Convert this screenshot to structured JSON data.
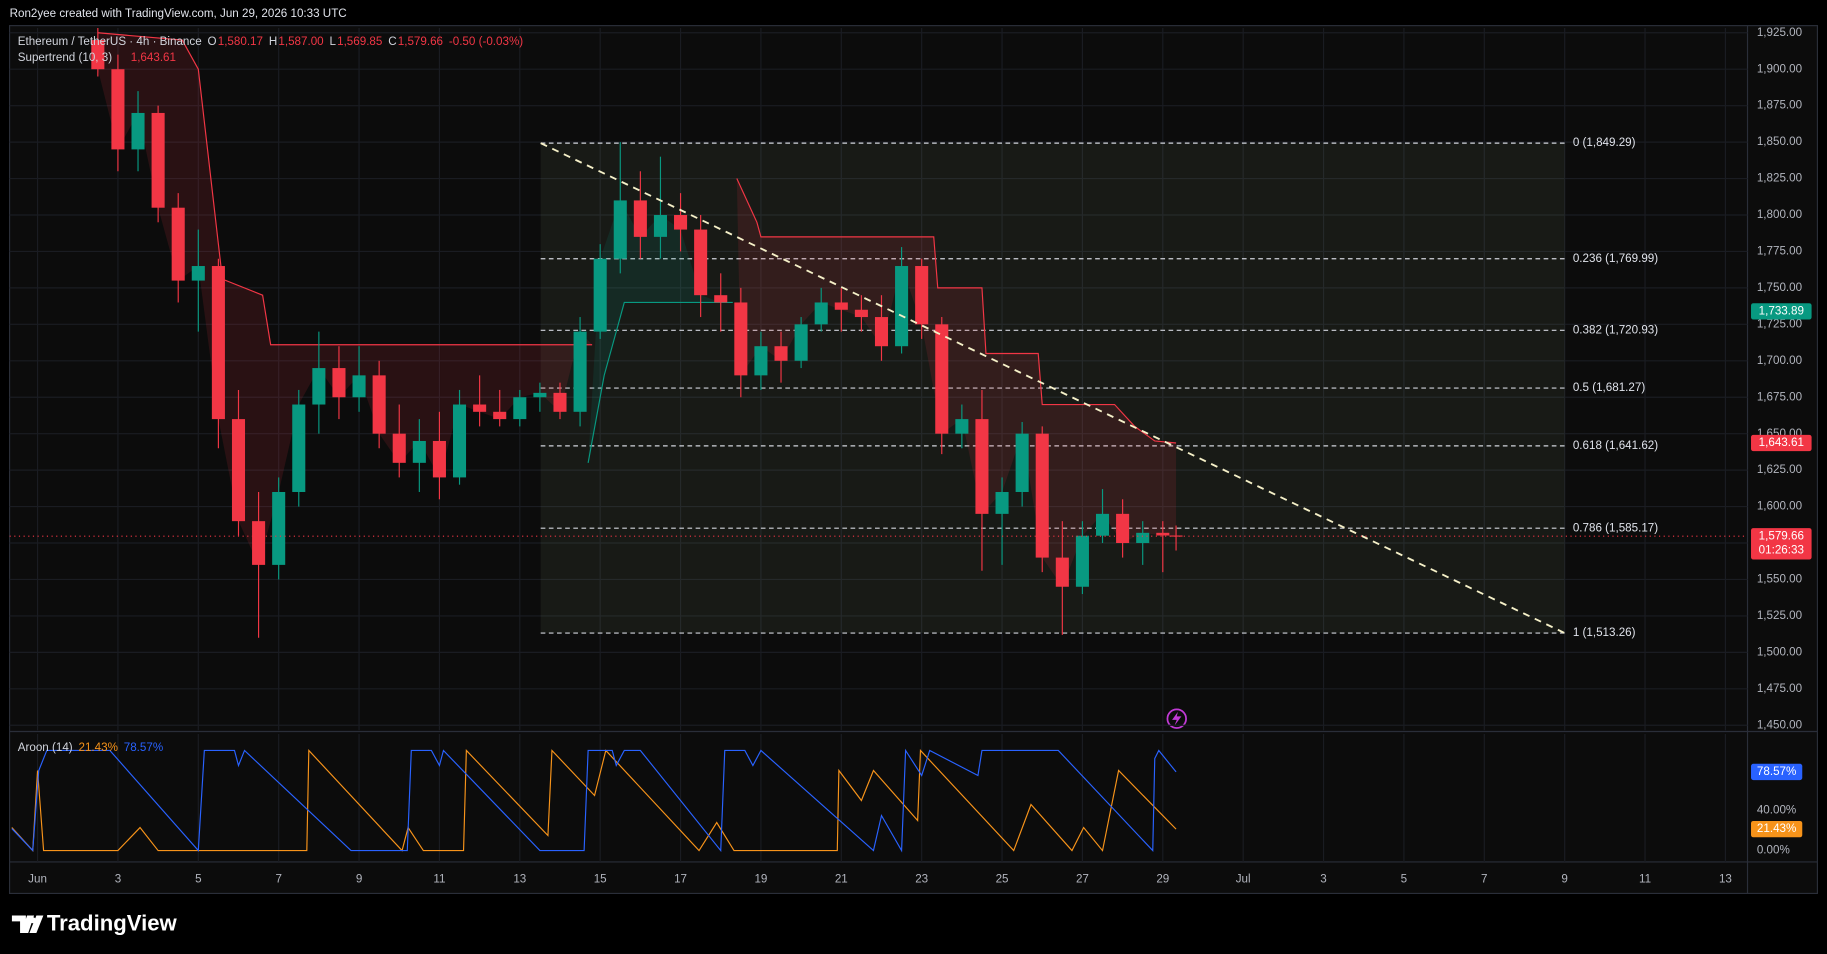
{
  "chart_data": {
    "type": "candlestick",
    "attribution": "Ron2yee created with TradingView.com, Jun 29, 2026 10:33 UTC",
    "symbol": "Ethereum / TetherUS · 4h · Binance",
    "ohlc_header": [
      {
        "key": "O",
        "value": "1,580.17"
      },
      {
        "key": "H",
        "value": "1,587.00"
      },
      {
        "key": "L",
        "value": "1,569.85"
      },
      {
        "key": "C",
        "value": "1,579.66"
      }
    ],
    "change": "-0.50 (-0.03%)",
    "up_color": "#089981",
    "down_color": "#f23645",
    "xlim": [
      0.362,
      43.55
    ],
    "xticks": [
      {
        "value": 1,
        "label": "Jun"
      },
      3,
      5,
      7,
      9,
      11,
      13,
      15,
      17,
      19,
      21,
      23,
      25,
      27,
      29,
      {
        "value": 31,
        "label": "Jul"
      },
      {
        "value": 33,
        "label": "3"
      },
      {
        "value": 35,
        "label": "5"
      },
      {
        "value": 37,
        "label": "7"
      },
      {
        "value": 39,
        "label": "9"
      },
      {
        "value": 41,
        "label": "11"
      },
      {
        "value": 43,
        "label": "13"
      }
    ],
    "ylim": [
      1446.5,
      1928.3
    ],
    "yticks": [
      {
        "value": 1450,
        "label": "1,450.00"
      },
      {
        "value": 1475,
        "label": "1,475.00"
      },
      {
        "value": 1500,
        "label": "1,500.00"
      },
      {
        "value": 1525,
        "label": "1,525.00"
      },
      {
        "value": 1550,
        "label": "1,550.00"
      },
      {
        "value": 1575,
        "label": "1,575.00"
      },
      {
        "value": 1600,
        "label": "1,600.00"
      },
      {
        "value": 1625,
        "label": "1,625.00"
      },
      {
        "value": 1650,
        "label": "1,650.00"
      },
      {
        "value": 1675,
        "label": "1,675.00"
      },
      {
        "value": 1700,
        "label": "1,700.00"
      },
      {
        "value": 1725,
        "label": "1,725.00"
      },
      {
        "value": 1750,
        "label": "1,750.00"
      },
      {
        "value": 1775,
        "label": "1,775.00"
      },
      {
        "value": 1800,
        "label": "1,800.00"
      },
      {
        "value": 1825,
        "label": "1,825.00"
      },
      {
        "value": 1850,
        "label": "1,850.00"
      },
      {
        "value": 1875,
        "label": "1,875.00"
      },
      {
        "value": 1900,
        "label": "1,900.00"
      },
      {
        "value": 1925,
        "label": "1,925.00"
      }
    ],
    "candles": {
      "x": [
        2.5,
        3,
        3.5,
        4,
        4.5,
        5,
        5.5,
        6,
        6.5,
        7,
        7.5,
        8,
        8.5,
        9,
        9.5,
        10,
        10.5,
        11,
        11.5,
        12,
        12.5,
        13,
        13.5,
        14,
        14.5,
        15,
        15.5,
        16,
        16.5,
        17,
        17.5,
        18,
        18.5,
        19,
        19.5,
        20,
        20.5,
        21,
        21.5,
        22,
        22.5,
        23,
        23.5,
        24,
        24.5,
        25,
        25.5,
        26,
        26.5,
        27,
        27.5,
        28,
        28.5,
        29,
        29.33
      ],
      "open": [
        1920,
        1900,
        1845,
        1870,
        1805,
        1755,
        1765,
        1660,
        1590,
        1560,
        1610,
        1670,
        1695,
        1675,
        1690,
        1650,
        1630,
        1645,
        1620,
        1670,
        1665,
        1660,
        1675,
        1678,
        1665,
        1720,
        1770,
        1810,
        1785,
        1800,
        1790,
        1745,
        1740,
        1690,
        1710,
        1700,
        1725,
        1740,
        1735,
        1730,
        1710,
        1765,
        1725,
        1650,
        1660,
        1595,
        1610,
        1650,
        1565,
        1545,
        1580,
        1595,
        1575,
        1582,
        1580.17
      ],
      "high": [
        1935,
        1910,
        1885,
        1875,
        1815,
        1790,
        1770,
        1680,
        1610,
        1620,
        1680,
        1720,
        1710,
        1710,
        1700,
        1670,
        1660,
        1665,
        1680,
        1690,
        1680,
        1680,
        1685,
        1685,
        1730,
        1780,
        1850,
        1830,
        1840,
        1815,
        1800,
        1760,
        1750,
        1720,
        1720,
        1730,
        1750,
        1750,
        1745,
        1745,
        1778,
        1770,
        1730,
        1670,
        1680,
        1620,
        1658,
        1655,
        1590,
        1590,
        1612,
        1605,
        1590,
        1590,
        1587
      ],
      "low": [
        1895,
        1830,
        1830,
        1795,
        1740,
        1720,
        1640,
        1580,
        1510,
        1550,
        1600,
        1650,
        1660,
        1665,
        1640,
        1620,
        1610,
        1605,
        1615,
        1655,
        1655,
        1655,
        1665,
        1660,
        1655,
        1715,
        1760,
        1770,
        1770,
        1775,
        1730,
        1720,
        1675,
        1680,
        1685,
        1695,
        1720,
        1720,
        1720,
        1700,
        1705,
        1715,
        1636,
        1640,
        1556,
        1560,
        1600,
        1555,
        1512,
        1540,
        1575,
        1565,
        1560,
        1555,
        1569.85
      ],
      "close": [
        1900,
        1845,
        1870,
        1805,
        1755,
        1765,
        1660,
        1590,
        1560,
        1610,
        1670,
        1695,
        1675,
        1690,
        1650,
        1630,
        1645,
        1620,
        1670,
        1665,
        1660,
        1675,
        1678,
        1665,
        1720,
        1770,
        1810,
        1785,
        1800,
        1790,
        1745,
        1740,
        1690,
        1710,
        1700,
        1725,
        1740,
        1735,
        1730,
        1710,
        1765,
        1725,
        1650,
        1660,
        1595,
        1610,
        1650,
        1565,
        1545,
        1580,
        1595,
        1575,
        1582,
        1580.17,
        1579.66
      ]
    },
    "supertrend": {
      "label": "Supertrend (10, 3)",
      "value_label": "1,643.61",
      "lines": [
        {
          "color": "#f23645",
          "x": [
            2.5,
            4.6,
            5.0,
            5.5,
            5.6,
            6.6,
            6.8,
            14.8
          ],
          "values": [
            1925,
            1920,
            1900,
            1780,
            1756,
            1745,
            1711,
            1711
          ]
        },
        {
          "color": "#089981",
          "x": [
            14.7,
            14.9,
            15.1,
            15.4,
            15.6,
            18.3
          ],
          "values": [
            1630,
            1660,
            1690,
            1720,
            1740,
            1740
          ]
        },
        {
          "color": "#f23645",
          "x": [
            18.4,
            18.9,
            19.0,
            23.3,
            23.4,
            24.5,
            24.6,
            25.9,
            26.0,
            27.8,
            28.3,
            28.8,
            29.33
          ],
          "values": [
            1825,
            1795,
            1785,
            1785,
            1750,
            1750,
            1705,
            1705,
            1670,
            1670,
            1655,
            1645,
            1643.61
          ]
        }
      ]
    },
    "fib": {
      "x": [
        13.52,
        39.0
      ],
      "levels": [
        {
          "value": 1849.29,
          "label": "0 (1,849.29)"
        },
        {
          "value": 1769.99,
          "label": "0.236 (1,769.99)"
        },
        {
          "value": 1720.93,
          "label": "0.382 (1,720.93)"
        },
        {
          "value": 1681.27,
          "label": "0.5 (1,681.27)"
        },
        {
          "value": 1641.62,
          "label": "0.618 (1,641.62)"
        },
        {
          "value": 1585.17,
          "label": "0.786 (1,585.17)"
        },
        {
          "value": 1513.26,
          "label": "1 (1,513.26)"
        }
      ]
    },
    "trendline": {
      "x": [
        13.52,
        39.0
      ],
      "values": [
        1849.29,
        1513.26
      ]
    },
    "price_labels": [
      {
        "value": 1733.89,
        "label": "1,733.89",
        "color": "#089981"
      },
      {
        "value": 1643.61,
        "label": "1,643.61",
        "color": "#f23645"
      },
      {
        "value": 1579.66,
        "label": "1,579.66",
        "sublabel": "01:26:33",
        "color": "#f23645"
      }
    ],
    "aroon": {
      "label": "Aroon (14)",
      "ylim": [
        -11.4,
        116.6
      ],
      "yticks": [
        {
          "value": 0,
          "label": "0.00%"
        },
        {
          "value": 40,
          "label": "40.00%"
        }
      ],
      "series": [
        {
          "color": "#f7931a",
          "value_label": "21.43%",
          "x": [
            0.36,
            0.88,
            1.0,
            1.15,
            3.0,
            3.55,
            4.0,
            7.7,
            7.75,
            10.07,
            10.22,
            10.6,
            11.6,
            11.67,
            13.7,
            13.8,
            14.86,
            15.14,
            17.46,
            17.9,
            18.33,
            20.9,
            20.94,
            21.5,
            21.8,
            22.9,
            22.97,
            25.29,
            25.72,
            26.74,
            27.03,
            27.5,
            27.9,
            29.33
          ],
          "values": [
            23,
            0,
            80,
            0,
            0,
            23,
            0,
            0,
            100,
            0,
            23,
            0,
            0,
            100,
            15,
            100,
            55,
            100,
            0,
            28,
            0,
            0,
            80,
            50,
            80,
            30,
            100,
            0,
            46,
            0,
            23,
            0,
            80,
            21.43
          ]
        },
        {
          "color": "#2962ff",
          "value_label": "78.57%",
          "x": [
            0.36,
            0.88,
            1.03,
            1.23,
            2.8,
            5.0,
            5.15,
            5.9,
            6.0,
            6.15,
            8.8,
            10.2,
            10.3,
            10.8,
            11.0,
            11.1,
            13.5,
            14.6,
            14.7,
            15.3,
            15.4,
            15.6,
            16.0,
            18.0,
            18.1,
            18.6,
            18.8,
            19.0,
            21.8,
            22.0,
            22.5,
            22.6,
            23.0,
            23.2,
            24.4,
            24.5,
            26.4,
            28.75,
            28.8,
            28.9,
            29.33
          ],
          "values": [
            22,
            0,
            80,
            100,
            100,
            0,
            100,
            100,
            85,
            100,
            0,
            0,
            100,
            100,
            85,
            100,
            0,
            0,
            100,
            100,
            85,
            100,
            100,
            0,
            100,
            100,
            85,
            100,
            0,
            35,
            0,
            100,
            75,
            100,
            75,
            100,
            100,
            0,
            92,
            100,
            78.57
          ]
        }
      ]
    },
    "brand": "TradingView"
  }
}
